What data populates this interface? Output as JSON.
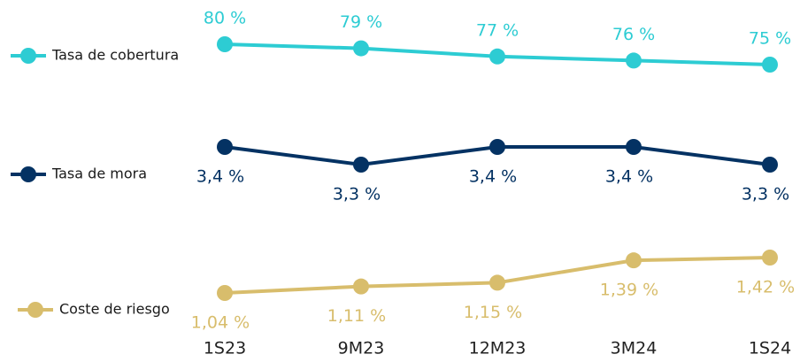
{
  "chart_data": {
    "type": "line",
    "categories": [
      "1S23",
      "9M23",
      "12M23",
      "3M24",
      "1S24"
    ],
    "series": [
      {
        "name": "Tasa de cobertura",
        "color": "#2dccd3",
        "values": [
          80,
          79,
          77,
          76,
          75
        ],
        "value_labels": [
          "80 %",
          "79 %",
          "77 %",
          "76 %",
          "75 %"
        ]
      },
      {
        "name": "Tasa de mora",
        "color": "#043263",
        "values": [
          3.4,
          3.3,
          3.4,
          3.4,
          3.3
        ],
        "value_labels": [
          "3,4 %",
          "3,3 %",
          "3,4 %",
          "3,4 %",
          "3,3 %"
        ]
      },
      {
        "name": "Coste de riesgo",
        "color": "#d8bd6c",
        "values": [
          1.04,
          1.11,
          1.15,
          1.39,
          1.42
        ],
        "value_labels": [
          "1,04 %",
          "1,11 %",
          "1,15 %",
          "1,39 %",
          "1,42 %"
        ]
      }
    ]
  }
}
